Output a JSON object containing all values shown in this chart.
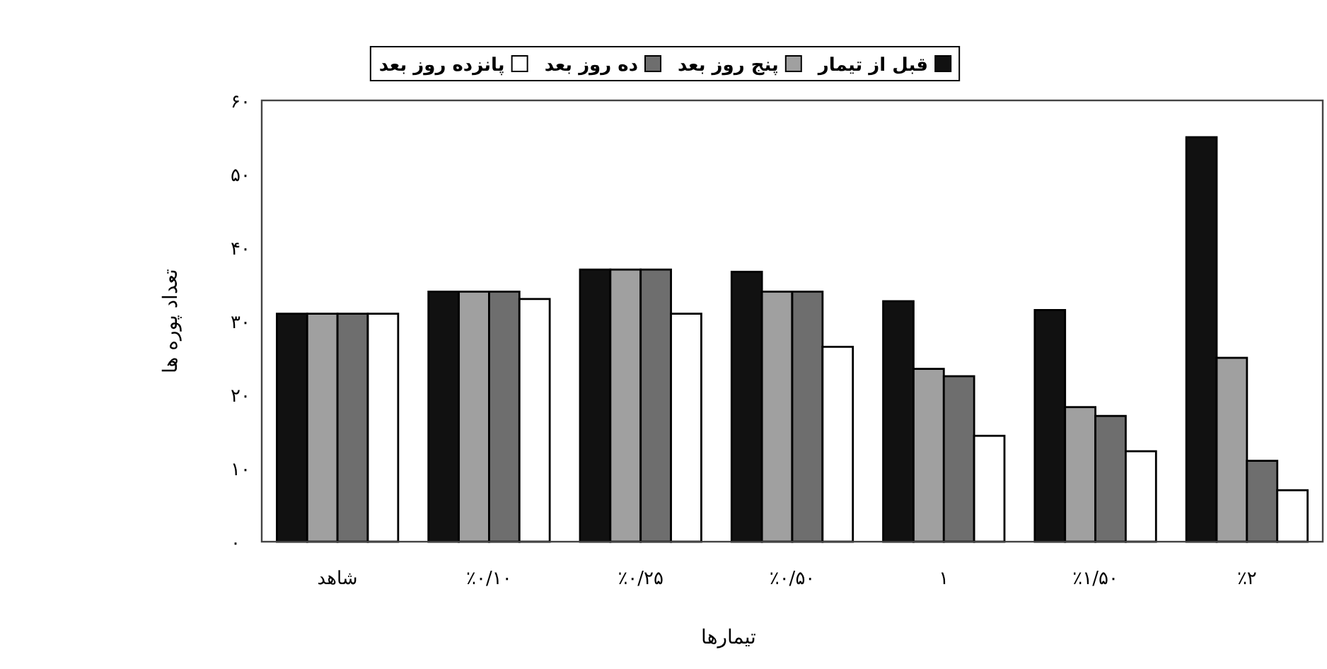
{
  "chart_data": {
    "type": "bar",
    "xlabel": "تیمارها",
    "ylabel": "تعداد پوره ها",
    "categories": [
      "شاهد",
      "٪۰/۱۰",
      "٪۰/۲۵",
      "٪۰/۵۰",
      "۱",
      "٪۱/۵۰",
      "٪۲"
    ],
    "series": [
      {
        "name": "قبل از تیمار",
        "color": "#111111",
        "values": [
          31,
          34,
          37,
          36.7,
          32.7,
          31.5,
          55
        ]
      },
      {
        "name": "پنج روز بعد",
        "color": "#a0a0a0",
        "values": [
          31,
          34,
          37,
          34,
          23.5,
          18.3,
          25
        ]
      },
      {
        "name": "ده روز بعد",
        "color": "#6e6e6e",
        "values": [
          31,
          34,
          37,
          34,
          22.5,
          17.1,
          11
        ]
      },
      {
        "name": "پانزده روز بعد",
        "color": "#ffffff",
        "values": [
          31,
          33,
          31,
          26.5,
          14.4,
          12.3,
          7
        ]
      }
    ],
    "ylim": [
      0,
      60
    ],
    "yticks": [
      {
        "value": 0,
        "label": "۰"
      },
      {
        "value": 10,
        "label": "۱۰"
      },
      {
        "value": 20,
        "label": "۲۰"
      },
      {
        "value": 30,
        "label": "۳۰"
      },
      {
        "value": 40,
        "label": "۴۰"
      },
      {
        "value": 50,
        "label": "۵۰"
      },
      {
        "value": 60,
        "label": "۶۰"
      }
    ],
    "legend": "top",
    "grid": false
  }
}
